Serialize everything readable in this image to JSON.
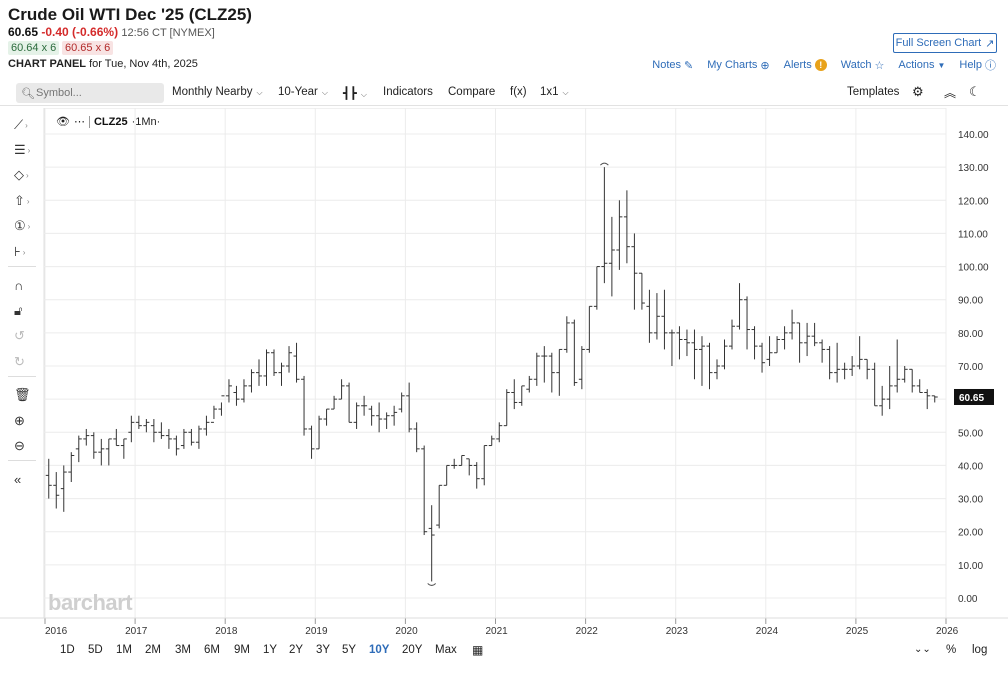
{
  "header": {
    "title": "Crude Oil WTI Dec '25 (CLZ25)",
    "last": "60.65",
    "change": "-0.40 (-0.66%)",
    "time": "12:56 CT [NYMEX]",
    "bid": "60.64 x 6",
    "ask": "60.65 x 6",
    "panel_label_bold": "CHART PANEL",
    "panel_label_rest": "for Tue, Nov 4th, 2025",
    "fullscreen": "Full Screen Chart",
    "links": {
      "notes": "Notes",
      "mycharts": "My Charts",
      "alerts": "Alerts",
      "watch": "Watch",
      "actions": "Actions",
      "help": "Help"
    }
  },
  "toolbar": {
    "search_placeholder": "Symbol...",
    "items": {
      "monthly": "Monthly Nearby",
      "period": "10-Year",
      "indicators": "Indicators",
      "compare": "Compare",
      "fx": "f(x)",
      "layout": "1x1",
      "templates": "Templates"
    }
  },
  "chart_overlay": {
    "symbol": "CLZ25",
    "interval": "·1Mn·",
    "watermark": "barchart",
    "last_price_label": "60.65"
  },
  "range_bar": [
    "1D",
    "5D",
    "1M",
    "2M",
    "3M",
    "6M",
    "9M",
    "1Y",
    "2Y",
    "3Y",
    "5Y",
    "10Y",
    "20Y",
    "Max"
  ],
  "range_active": "10Y",
  "range_right": {
    "pct": "%",
    "log": "log"
  },
  "colors": {
    "accent": "#2e6cb8",
    "down": "#d42a2a",
    "up": "#2b6b3c",
    "bars": "#333333"
  },
  "chart_data": {
    "type": "ohlc",
    "ylim": [
      -5,
      145
    ],
    "yticks": [
      "0.00",
      "10.00",
      "20.00",
      "30.00",
      "40.00",
      "50.00",
      "60.00",
      "70.00",
      "80.00",
      "90.00",
      "100.00",
      "110.00",
      "120.00",
      "130.00",
      "140.00"
    ],
    "xticks": [
      "2016",
      "2017",
      "2018",
      "2019",
      "2020",
      "2021",
      "2022",
      "2023",
      "2024",
      "2025",
      "2026"
    ],
    "x_start": "2016-01",
    "bars": [
      [
        37,
        42,
        30,
        34
      ],
      [
        34,
        38,
        27,
        31
      ],
      [
        33,
        40,
        26,
        38
      ],
      [
        38,
        44,
        35,
        43
      ],
      [
        45,
        49,
        41,
        48
      ],
      [
        48,
        51,
        46,
        49
      ],
      [
        49,
        50,
        42,
        44
      ],
      [
        44,
        48,
        40,
        45
      ],
      [
        45,
        48,
        40,
        48
      ],
      [
        48,
        51,
        46,
        46
      ],
      [
        46,
        48,
        42,
        48
      ],
      [
        50,
        55,
        47,
        53
      ],
      [
        53,
        55,
        51,
        52
      ],
      [
        52,
        54,
        50,
        53
      ],
      [
        52,
        54,
        47,
        50
      ],
      [
        50,
        53,
        48,
        49
      ],
      [
        49,
        51,
        45,
        48
      ],
      [
        48,
        49,
        43,
        45
      ],
      [
        46,
        51,
        45,
        50
      ],
      [
        50,
        51,
        46,
        47
      ],
      [
        47,
        52,
        45,
        51
      ],
      [
        51,
        55,
        49,
        53
      ],
      [
        53,
        58,
        54,
        57
      ],
      [
        57,
        59,
        55,
        61
      ],
      [
        61,
        66,
        59,
        64
      ],
      [
        62,
        64,
        58,
        60
      ],
      [
        60,
        66,
        59,
        64
      ],
      [
        64,
        69,
        62,
        68
      ],
      [
        68,
        72,
        64,
        67
      ],
      [
        67,
        75,
        64,
        74
      ],
      [
        74,
        75,
        67,
        68
      ],
      [
        68,
        71,
        64,
        70
      ],
      [
        70,
        76,
        68,
        74
      ],
      [
        73,
        77,
        65,
        66
      ],
      [
        66,
        67,
        49,
        51
      ],
      [
        51,
        52,
        42,
        45
      ],
      [
        45,
        55,
        45,
        54
      ],
      [
        54,
        57,
        52,
        57
      ],
      [
        57,
        61,
        57,
        60
      ],
      [
        60,
        66,
        60,
        64
      ],
      [
        64,
        65,
        53,
        53
      ],
      [
        53,
        59,
        51,
        58
      ],
      [
        58,
        61,
        55,
        58
      ],
      [
        57,
        58,
        52,
        55
      ],
      [
        55,
        59,
        50,
        54
      ],
      [
        54,
        56,
        51,
        55
      ],
      [
        55,
        58,
        52,
        56
      ],
      [
        57,
        62,
        56,
        61
      ],
      [
        61,
        65,
        50,
        51
      ],
      [
        51,
        53,
        44,
        45
      ],
      [
        45,
        46,
        19,
        20
      ],
      [
        21,
        28,
        5,
        19
      ],
      [
        22,
        34,
        21,
        34
      ],
      [
        34,
        40,
        34,
        40
      ],
      [
        40,
        42,
        39,
        40
      ],
      [
        40,
        43,
        40,
        43
      ],
      [
        42,
        42,
        37,
        40
      ],
      [
        40,
        41,
        33,
        36
      ],
      [
        36,
        46,
        34,
        46
      ],
      [
        46,
        49,
        46,
        48
      ],
      [
        48,
        53,
        47,
        52
      ],
      [
        52,
        63,
        52,
        62
      ],
      [
        62,
        66,
        57,
        59
      ],
      [
        59,
        64,
        58,
        64
      ],
      [
        63,
        67,
        62,
        66
      ],
      [
        66,
        74,
        64,
        73
      ],
      [
        73,
        76,
        65,
        73
      ],
      [
        73,
        74,
        62,
        68
      ],
      [
        68,
        75,
        61,
        75
      ],
      [
        75,
        85,
        74,
        83
      ],
      [
        83,
        84,
        64,
        65
      ],
      [
        66,
        76,
        63,
        75
      ],
      [
        75,
        88,
        74,
        88
      ],
      [
        88,
        100,
        87,
        100
      ],
      [
        100,
        130,
        95,
        101
      ],
      [
        101,
        115,
        91,
        105
      ],
      [
        105,
        120,
        99,
        115
      ],
      [
        115,
        123,
        101,
        106
      ],
      [
        106,
        110,
        87,
        98
      ],
      [
        98,
        98,
        87,
        89
      ],
      [
        88,
        93,
        77,
        80
      ],
      [
        80,
        92,
        78,
        85
      ],
      [
        85,
        93,
        75,
        80
      ],
      [
        80,
        81,
        70,
        80
      ],
      [
        80,
        82,
        72,
        78
      ],
      [
        78,
        81,
        73,
        77
      ],
      [
        77,
        81,
        66,
        75
      ],
      [
        75,
        79,
        64,
        76
      ],
      [
        76,
        77,
        63,
        68
      ],
      [
        68,
        72,
        66,
        70
      ],
      [
        70,
        78,
        69,
        76
      ],
      [
        76,
        84,
        75,
        82
      ],
      [
        82,
        95,
        81,
        90
      ],
      [
        90,
        91,
        75,
        81
      ],
      [
        81,
        82,
        72,
        76
      ],
      [
        76,
        77,
        68,
        71
      ],
      [
        72,
        79,
        70,
        74
      ],
      [
        74,
        79,
        74,
        78
      ],
      [
        78,
        82,
        75,
        80
      ],
      [
        80,
        87,
        78,
        83
      ],
      [
        83,
        83,
        71,
        77
      ],
      [
        77,
        83,
        73,
        79
      ],
      [
        79,
        83,
        76,
        77
      ],
      [
        77,
        78,
        71,
        75
      ],
      [
        75,
        76,
        66,
        68
      ],
      [
        68,
        77,
        65,
        69
      ],
      [
        69,
        71,
        66,
        69
      ],
      [
        69,
        73,
        67,
        70
      ],
      [
        70,
        79,
        69,
        72
      ],
      [
        72,
        72,
        66,
        69
      ],
      [
        69,
        71,
        58,
        58
      ],
      [
        58,
        64,
        55,
        60
      ],
      [
        60,
        70,
        57,
        64
      ],
      [
        64,
        78,
        62,
        66
      ],
      [
        66,
        70,
        65,
        69
      ],
      [
        69,
        69,
        62,
        64
      ],
      [
        64,
        66,
        62,
        62
      ],
      [
        62,
        63,
        57,
        61
      ],
      [
        61,
        61,
        59,
        60.65
      ]
    ]
  }
}
